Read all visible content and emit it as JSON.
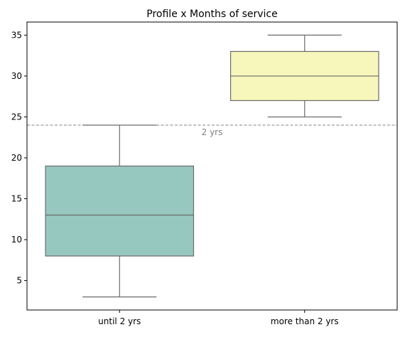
{
  "chart_data": {
    "type": "box",
    "title": "Profile x Months of service",
    "xlabel": "",
    "ylabel": "",
    "categories": [
      "until 2 yrs",
      "more than 2 yrs"
    ],
    "boxes": [
      {
        "category": "until 2 yrs",
        "whisker_low": 3,
        "q1": 8,
        "median": 13,
        "q3": 19,
        "whisker_high": 24,
        "color": "#96c8c0"
      },
      {
        "category": "more than 2 yrs",
        "whisker_low": 25,
        "q1": 27,
        "median": 30,
        "q3": 33,
        "whisker_high": 35,
        "color": "#f7f6bb"
      }
    ],
    "ylim": [
      1.4,
      36.6
    ],
    "yticks": [
      5,
      10,
      15,
      20,
      25,
      30,
      35
    ],
    "reference_line": {
      "y": 24,
      "label": "2 yrs",
      "color": "#808080"
    },
    "grid": false
  }
}
